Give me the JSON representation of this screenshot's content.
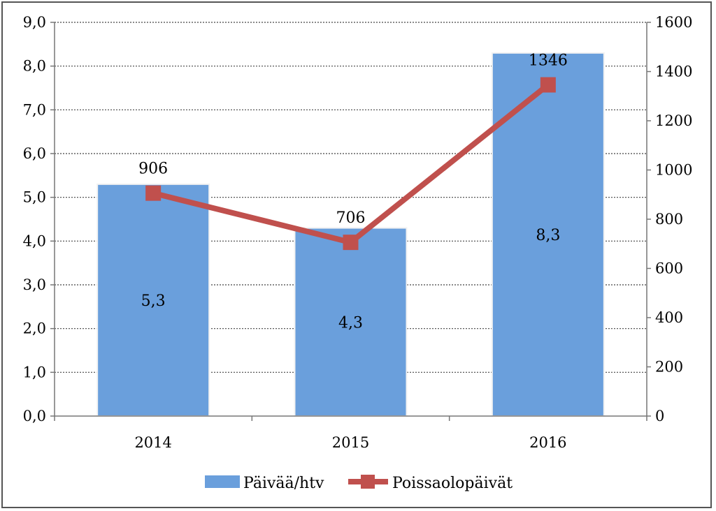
{
  "chart_data": {
    "type": "bar",
    "categories": [
      "2014",
      "2015",
      "2016"
    ],
    "series": [
      {
        "name": "Päivää/htv",
        "type": "bar",
        "axis": "left",
        "values": [
          5.3,
          4.3,
          8.3
        ],
        "labels": [
          "5,3",
          "4,3",
          "8,3"
        ],
        "color": "#6a9fdc"
      },
      {
        "name": "Poissaolopäivät",
        "type": "line",
        "axis": "right",
        "values": [
          906,
          706,
          1346
        ],
        "labels": [
          "906",
          "706",
          "1346"
        ],
        "color": "#c0504d"
      }
    ],
    "y_left": {
      "min": 0,
      "max": 9,
      "step": 1,
      "tick_labels": [
        "0,0",
        "1,0",
        "2,0",
        "3,0",
        "4,0",
        "5,0",
        "6,0",
        "7,0",
        "8,0",
        "9,0"
      ]
    },
    "y_right": {
      "min": 0,
      "max": 1600,
      "step": 200,
      "tick_labels": [
        "0",
        "200",
        "400",
        "600",
        "800",
        "1000",
        "1200",
        "1400",
        "1600"
      ]
    },
    "grid": "horizontal-dotted",
    "legend_position": "bottom"
  }
}
